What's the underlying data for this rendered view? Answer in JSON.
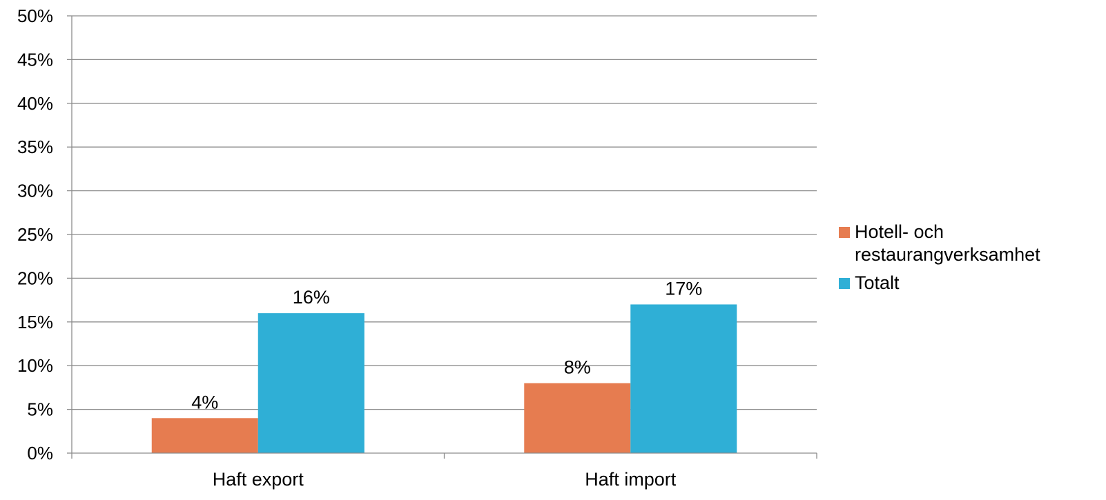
{
  "chart_data": {
    "type": "bar",
    "categories": [
      "Haft export",
      "Haft import"
    ],
    "series": [
      {
        "name": "Hotell- och restaurangverksamhet",
        "values": [
          4,
          8
        ],
        "data_labels": [
          "4%",
          "8%"
        ],
        "color": "#E67C50"
      },
      {
        "name": "Totalt",
        "values": [
          16,
          17
        ],
        "data_labels": [
          "16%",
          "17%"
        ],
        "color": "#2FAFD6"
      }
    ],
    "ylim": [
      0,
      50
    ],
    "y_ticks": [
      "0%",
      "5%",
      "10%",
      "15%",
      "20%",
      "25%",
      "30%",
      "35%",
      "40%",
      "45%",
      "50%"
    ],
    "grid": true,
    "legend_position": "right"
  }
}
